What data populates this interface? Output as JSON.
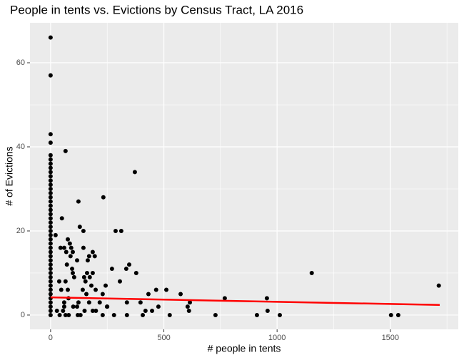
{
  "chart_data": {
    "type": "scatter",
    "title": "People in tents vs. Evictions by Census Tract, LA 2016",
    "x_label": "# people in tents",
    "y_label": "# of Evictions",
    "x": [
      0,
      0,
      0,
      0,
      0,
      0,
      0,
      0,
      0,
      0,
      0,
      0,
      0,
      0,
      0,
      0,
      0,
      0,
      0,
      0,
      0,
      0,
      0,
      0,
      0,
      0,
      0,
      0,
      0,
      0,
      0,
      0,
      0,
      0,
      0,
      0,
      0,
      0,
      0,
      0,
      0,
      0,
      0,
      66,
      372,
      123,
      233,
      50,
      129,
      145,
      287,
      312,
      22,
      76,
      85,
      60,
      91,
      44,
      69,
      98,
      186,
      170,
      195,
      145,
      88,
      117,
      164,
      72,
      347,
      271,
      334,
      95,
      98,
      161,
      186,
      378,
      1153,
      104,
      148,
      173,
      38,
      66,
      154,
      306,
      180,
      243,
      1714,
      47,
      76,
      142,
      199,
      466,
      511,
      230,
      432,
      574,
      158,
      769,
      955,
      79,
      60,
      123,
      217,
      337,
      397,
      615,
      117,
      249,
      605,
      476,
      28,
      186,
      419,
      448,
      611,
      958,
      66,
      132,
      280,
      337,
      407,
      526,
      728,
      911,
      1012,
      1503,
      1535,
      40,
      55,
      100,
      120,
      150,
      170,
      200,
      230,
      250,
      60,
      80
    ],
    "y": [
      0,
      1,
      2,
      3,
      4,
      5,
      6,
      7,
      8,
      9,
      10,
      11,
      12,
      13,
      14,
      15,
      16,
      17,
      18,
      19,
      20,
      21,
      22,
      23,
      24,
      25,
      26,
      27,
      28,
      29,
      30,
      31,
      32,
      33,
      34,
      35,
      36,
      37,
      38,
      41,
      43,
      57,
      66,
      39,
      34,
      27,
      28,
      23,
      21,
      20,
      20,
      20,
      19,
      18,
      17,
      16,
      16,
      16,
      15,
      15,
      15,
      14,
      14,
      16,
      14,
      13,
      13,
      12,
      12,
      11,
      11,
      11,
      10,
      10,
      10,
      10,
      10,
      9,
      9,
      9,
      8,
      8,
      8,
      8,
      7,
      7,
      7,
      6,
      6,
      6,
      6,
      6,
      6,
      5,
      5,
      5,
      5,
      4,
      4,
      4,
      3,
      3,
      3,
      3,
      3,
      3,
      2,
      2,
      2,
      2,
      1,
      1,
      1,
      1,
      1,
      1,
      0,
      0,
      0,
      0,
      0,
      0,
      0,
      0,
      0,
      0,
      0,
      0,
      1,
      2,
      0,
      1,
      3,
      1,
      0,
      2,
      2,
      0
    ],
    "color": "#000000",
    "trend": {
      "color": "#ff0000",
      "x": [
        0,
        1718
      ],
      "y": [
        4.2,
        2.4
      ]
    },
    "xlim": [
      -91,
      1800
    ],
    "ylim": [
      -3.4,
      69.5
    ],
    "xticks": [
      0,
      500,
      1000,
      1500
    ],
    "yticks": [
      0,
      20,
      40,
      60
    ],
    "xminor": [
      250,
      750,
      1250,
      1750
    ],
    "yminor": [
      10,
      30,
      50
    ],
    "grid": true
  }
}
